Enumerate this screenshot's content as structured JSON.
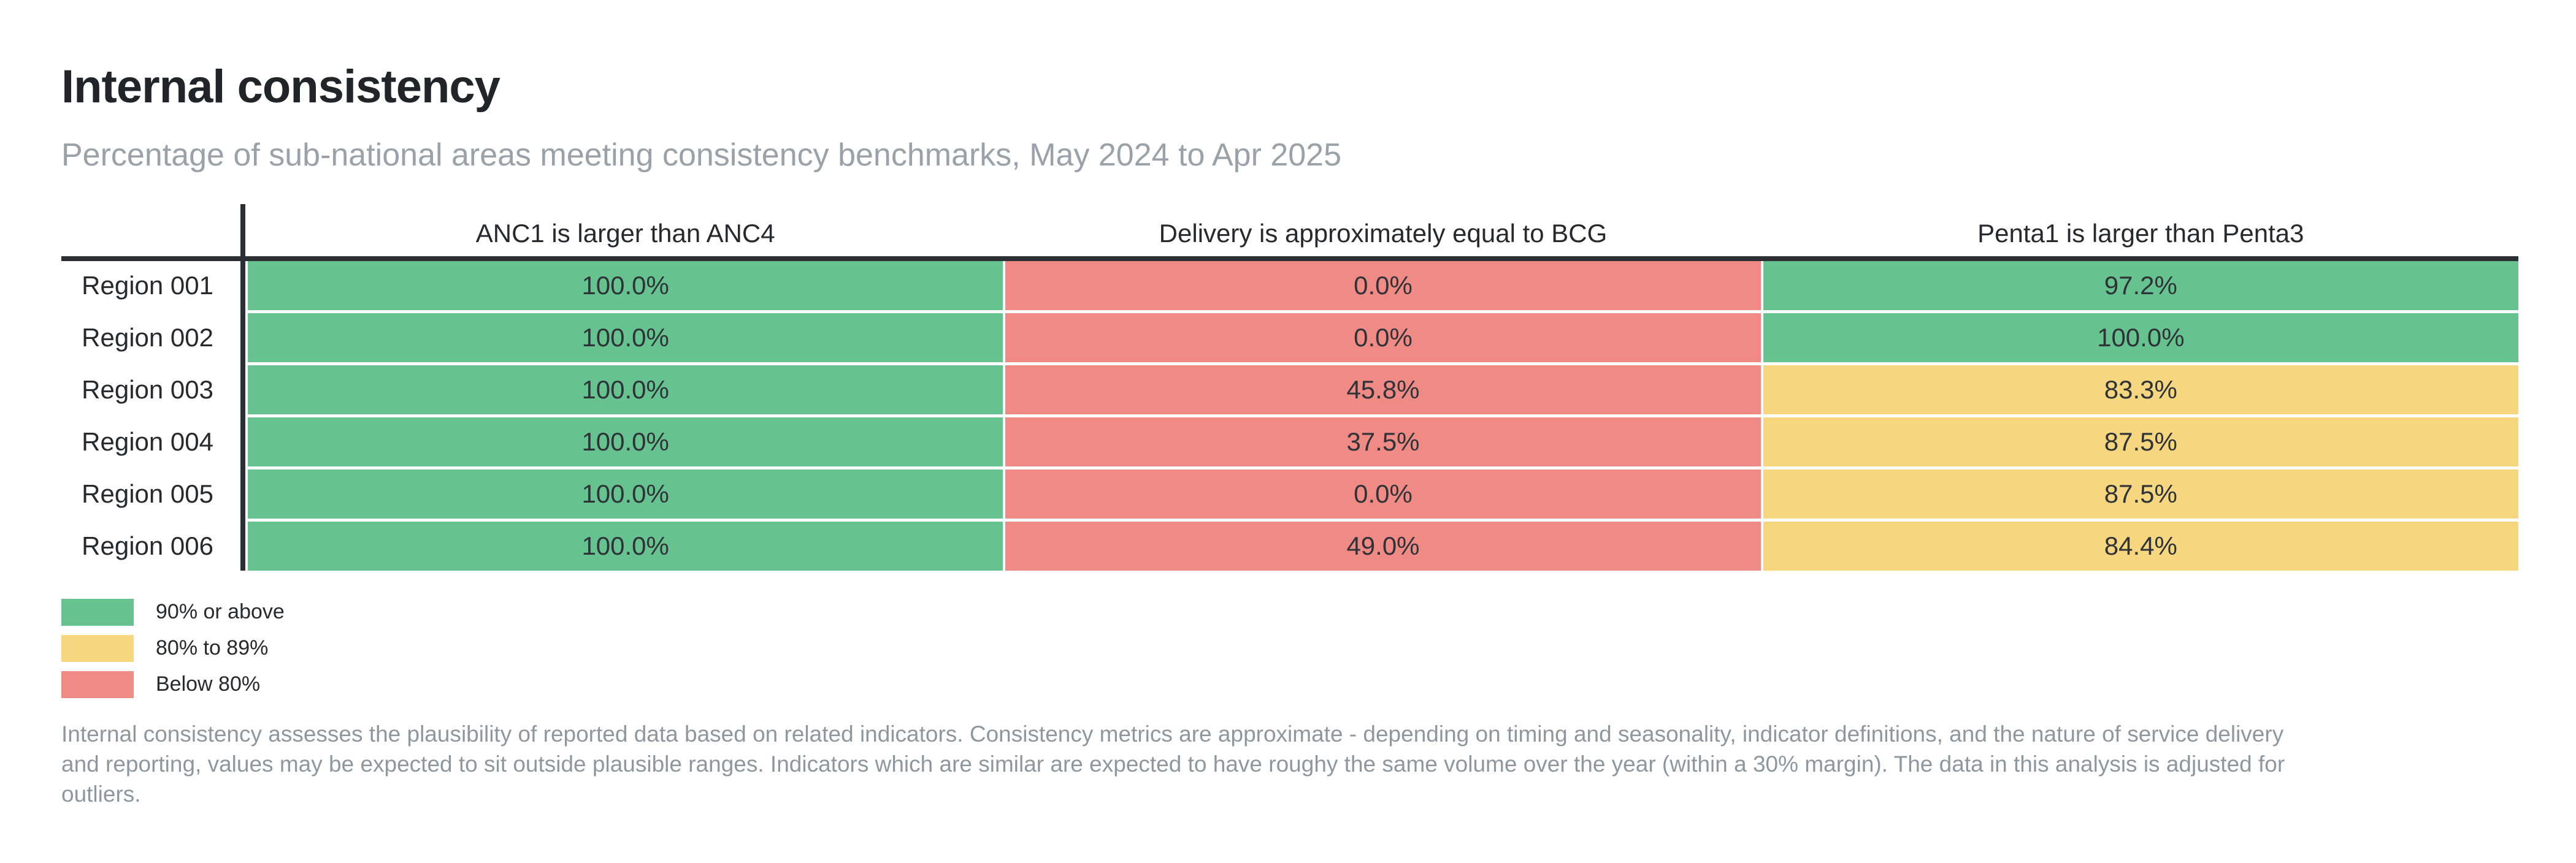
{
  "title": "Internal consistency",
  "subtitle": "Percentage of sub-national areas meeting consistency benchmarks, May 2024 to Apr 2025",
  "chart_data": {
    "type": "heatmap",
    "columns": [
      "ANC1 is larger than ANC4",
      "Delivery is approximately equal to BCG",
      "Penta1 is larger than Penta3"
    ],
    "rows": [
      {
        "label": "Region 001",
        "values": [
          100.0,
          0.0,
          97.2
        ]
      },
      {
        "label": "Region 002",
        "values": [
          100.0,
          0.0,
          100.0
        ]
      },
      {
        "label": "Region 003",
        "values": [
          100.0,
          45.8,
          83.3
        ]
      },
      {
        "label": "Region 004",
        "values": [
          100.0,
          37.5,
          87.5
        ]
      },
      {
        "label": "Region 005",
        "values": [
          100.0,
          0.0,
          87.5
        ]
      },
      {
        "label": "Region 006",
        "values": [
          100.0,
          49.0,
          84.4
        ]
      }
    ],
    "value_suffix": "%",
    "value_decimals": 1,
    "thresholds": {
      "green_min": 90,
      "yellow_min": 80
    },
    "band_colors": {
      "green": "#66c38f",
      "yellow": "#f6d780",
      "red": "#f08a85"
    },
    "grid": false,
    "legend_position": "bottom-left"
  },
  "legend": [
    {
      "label": "90% or above",
      "band": "green"
    },
    {
      "label": "80% to 89%",
      "band": "yellow"
    },
    {
      "label": "Below 80%",
      "band": "red"
    }
  ],
  "footnote_lines": [
    "Internal consistency assesses the plausibility of reported data based on related indicators. Consistency metrics are approximate - depending on timing and seasonality, indicator definitions, and the nature of service delivery",
    "and reporting, values may be expected to sit outside plausible ranges. Indicators which are similar are expected to have roughy the same volume over the year (within a 30% margin). The data in this analysis is adjusted for",
    "outliers."
  ]
}
